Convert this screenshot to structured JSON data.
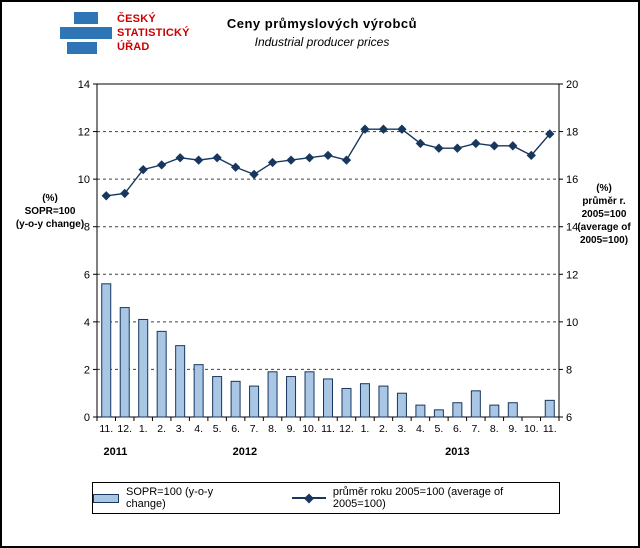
{
  "header": {
    "logo": {
      "line1": "ČESKÝ",
      "line2": "STATISTICKÝ",
      "line3": "ÚŘAD",
      "bar_color": "#2e75b6",
      "text_color": "#cc0000"
    },
    "title_cs": "Ceny průmyslových  výrobců",
    "title_en": "Industrial producer  prices"
  },
  "left_axis_label": {
    "l1": "(%)",
    "l2": "SOPR=100",
    "l3": "(y-o-y change)"
  },
  "right_axis_label": {
    "l1": "(%)",
    "l2": "průměr r.",
    "l3": "2005=100",
    "l4": "(average of",
    "l5": "2005=100)"
  },
  "legend": {
    "bar_label": "SOPR=100 (y-o-y change)",
    "line_label": "průměr roku 2005=100 (average of 2005=100)"
  },
  "chart_data": {
    "type": "combo (bar + line)",
    "title": "Ceny průmyslových výrobců / Industrial producer prices",
    "categories": [
      "11.",
      "12.",
      "1.",
      "2.",
      "3.",
      "4.",
      "5.",
      "6.",
      "7.",
      "8.",
      "9.",
      "10.",
      "11.",
      "12.",
      "1.",
      "2.",
      "3.",
      "4.",
      "5.",
      "6.",
      "7.",
      "8.",
      "9.",
      "10.",
      "11."
    ],
    "year_groups": [
      {
        "label": "2011",
        "start": 0,
        "end": 1
      },
      {
        "label": "2012",
        "start": 2,
        "end": 13
      },
      {
        "label": "2013",
        "start": 14,
        "end": 24
      }
    ],
    "series": [
      {
        "name": "SOPR=100 (y-o-y change)",
        "type": "bar",
        "axis": "left",
        "fill": "#a9c6e4",
        "stroke": "#17375e",
        "values": [
          5.6,
          4.6,
          4.1,
          3.6,
          3.0,
          2.2,
          1.7,
          1.5,
          1.3,
          1.9,
          1.7,
          1.9,
          1.6,
          1.2,
          1.4,
          1.3,
          1.0,
          0.5,
          0.3,
          0.6,
          1.1,
          0.5,
          0.6,
          0.0,
          0.7
        ]
      },
      {
        "name": "průměr roku 2005=100 (average of 2005=100)",
        "type": "line",
        "axis": "right",
        "color": "#17375e",
        "marker": "diamond",
        "values": [
          15.3,
          15.4,
          16.4,
          16.6,
          16.9,
          16.8,
          16.9,
          16.5,
          16.2,
          16.7,
          16.8,
          16.9,
          17.0,
          16.8,
          18.1,
          18.1,
          18.1,
          17.5,
          17.3,
          17.3,
          17.5,
          17.4,
          17.4,
          17.0,
          17.9
        ]
      }
    ],
    "left_axis": {
      "min": 0,
      "max": 14,
      "step": 2
    },
    "right_axis": {
      "min": 6,
      "max": 20,
      "step": 2
    },
    "grid": "dashed horizontal lines at every left-axis step",
    "legend_position": "bottom boxed"
  }
}
